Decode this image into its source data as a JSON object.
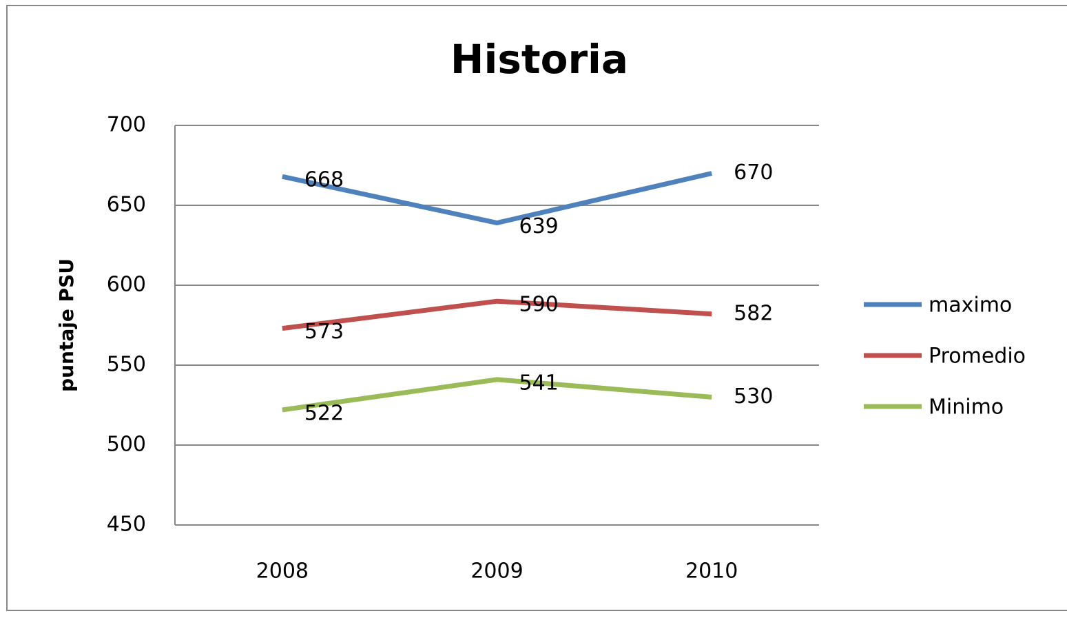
{
  "chart_data": {
    "type": "line",
    "title": "Historia",
    "y_label": "puntaje PSU",
    "categories": [
      "2008",
      "2009",
      "2010"
    ],
    "series": [
      {
        "name": "maximo",
        "color": "#4f81bd",
        "values": [
          668,
          639,
          670
        ]
      },
      {
        "name": "Promedio",
        "color": "#c0504d",
        "values": [
          573,
          590,
          582
        ]
      },
      {
        "name": "Minimo",
        "color": "#9bbb59",
        "values": [
          522,
          541,
          530
        ]
      }
    ],
    "ylim": [
      450,
      700
    ],
    "yticks": [
      450,
      500,
      550,
      600,
      650,
      700
    ],
    "grid": true,
    "legend": "right",
    "data_labels": true
  }
}
